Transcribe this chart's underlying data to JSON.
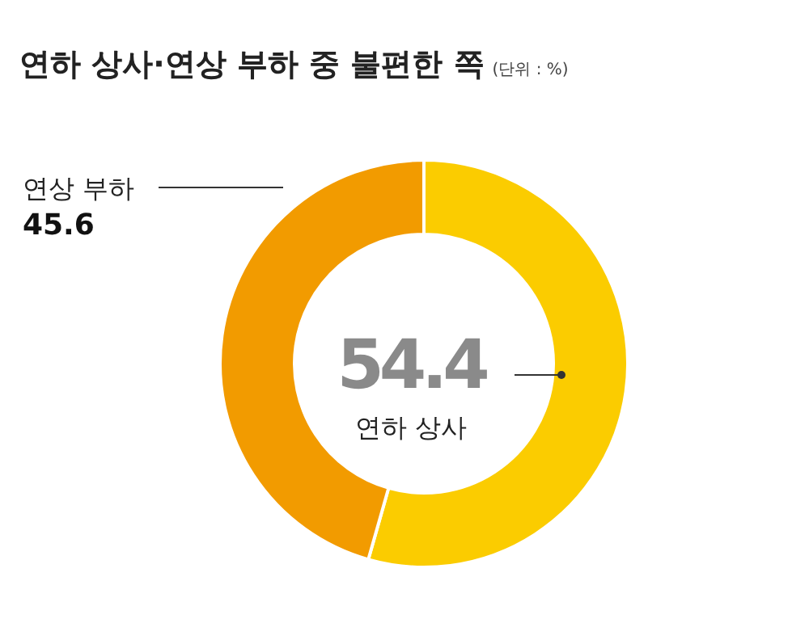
{
  "chart_data": {
    "type": "donut",
    "title": "연하 상사·연상 부하 중 불편한 쪽",
    "subtitle": "(단위 : %)",
    "categories": [
      "연하 상사",
      "연상 부하"
    ],
    "values": [
      54.4,
      45.6
    ],
    "colors": [
      "#fbcc00",
      "#f29b00"
    ],
    "data_labels": true
  }
}
